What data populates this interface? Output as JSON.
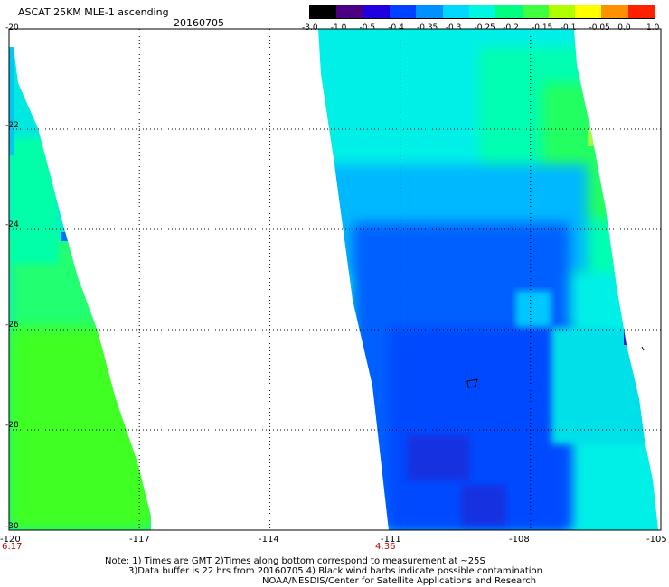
{
  "header": {
    "title": "ASCAT 25KM MLE-1 ascending",
    "date": "20160705"
  },
  "colorbar": {
    "labels": [
      "-3.0",
      "-1.0",
      "-0.5",
      "-0.4",
      "-0.35",
      "-0.3",
      "-0.25",
      "-0.2",
      "-0.15",
      "-0.1",
      "-0.05",
      "0.0",
      "1.0"
    ],
    "colors": [
      "#000000",
      "#4a0080",
      "#2000e0",
      "#0040ff",
      "#0090ff",
      "#00d8ff",
      "#00f8e0",
      "#00ff80",
      "#40ff40",
      "#b0ff00",
      "#ffff00",
      "#ff9000",
      "#ff2000"
    ]
  },
  "map": {
    "lat_labels": [
      "-20",
      "-22",
      "-24",
      "-26",
      "-28",
      "-30"
    ],
    "lon_labels": [
      "-120",
      "-117",
      "-114",
      "-111",
      "-108",
      "-105"
    ],
    "swath_colors": {
      "cyan": "#00f0e8",
      "aqua": "#00ffc8",
      "green": "#28ff50",
      "lime": "#40ff20",
      "blue": "#0060ff",
      "deep_blue": "#0040ff",
      "dark_blue": "#1830e0"
    }
  },
  "times": {
    "left": "6:17",
    "center": "4:36"
  },
  "notes": {
    "line1": "Note: 1) Times are GMT 2)Times along bottom correspond to measurement at ~25S",
    "line2": "3)Data buffer is 22 hrs from 20160705 4) Black wind barbs indicate possible contamination",
    "line3": "NOAA/NESDIS/Center for Satellite Applications and Research"
  }
}
